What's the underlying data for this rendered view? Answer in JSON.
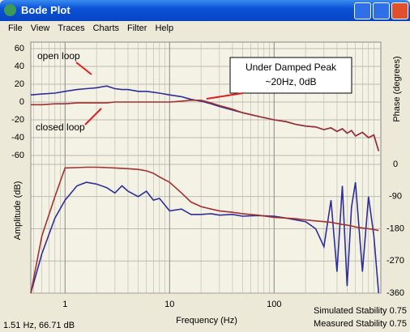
{
  "window": {
    "title": "Bode Plot",
    "menu": [
      "File",
      "View",
      "Traces",
      "Charts",
      "Filter",
      "Help"
    ]
  },
  "status": {
    "cursor": "1.51 Hz, 66.71 dB",
    "simulated": "Simulated Stability 0.75",
    "measured": "Measured Stability 0.75"
  },
  "chart_data": {
    "type": "line",
    "log_x": true,
    "x_label": "Frequency (Hz)",
    "y_label": "Amplitude (dB)",
    "y2_label": "Phase (degrees)",
    "annotations": [
      "open loop",
      "closed loop",
      "Under Damped Peak",
      "~20Hz, 0dB"
    ],
    "xlim": [
      0.47,
      1050
    ],
    "xticks": [
      1,
      10,
      100
    ],
    "xgrid_minor": [
      0.5,
      0.6,
      0.7,
      0.8,
      0.9,
      2,
      3,
      4,
      5,
      6,
      7,
      8,
      9,
      20,
      30,
      40,
      50,
      60,
      70,
      80,
      90,
      200,
      300,
      400,
      500,
      600,
      700,
      800,
      900
    ],
    "ylim": [
      -60,
      60
    ],
    "yticks": [
      60,
      40,
      20,
      0,
      -20,
      -40,
      -60
    ],
    "y2lim": [
      -360,
      0
    ],
    "y2ticks": [
      0,
      -90,
      -180,
      -270,
      -360
    ],
    "grid": true,
    "x": [
      0.47,
      0.6,
      0.8,
      1,
      1.3,
      1.6,
      2,
      2.5,
      3,
      3.5,
      4,
      5,
      6,
      7,
      8,
      10,
      13,
      16,
      20,
      25,
      30,
      40,
      50,
      70,
      100,
      130,
      160,
      200,
      250,
      300,
      350,
      400,
      450,
      500,
      550,
      600,
      700,
      800,
      900,
      1000
    ],
    "series": [
      {
        "color": "#2e2e9a",
        "values": [
          8,
          9,
          10,
          12,
          14,
          15,
          16,
          18,
          15,
          14,
          14,
          12,
          12,
          11,
          10,
          8,
          6,
          3,
          1,
          -2,
          -5,
          -9,
          -12,
          -16,
          -20,
          -22,
          -25,
          -27,
          -28,
          -31,
          -29,
          -33,
          -30,
          -35,
          -32,
          -38,
          -34,
          -40,
          -37,
          -55
        ]
      },
      {
        "color": "#a23030",
        "values": [
          -3,
          -3,
          -2,
          -2,
          -1,
          -1,
          -1,
          -1,
          0,
          0,
          0,
          0,
          0,
          0,
          0,
          0,
          1,
          2,
          2,
          -1,
          -4,
          -8,
          -12,
          -16,
          -20,
          -22,
          -25,
          -27,
          -28,
          -31,
          -29,
          -33,
          -30,
          -35,
          -32,
          -38,
          -34,
          -40,
          -37,
          -55
        ]
      },
      {
        "color": "#2e2e9a",
        "axis": "y2",
        "values": [
          -360,
          -250,
          -150,
          -100,
          -60,
          -50,
          -55,
          -65,
          -80,
          -60,
          -75,
          -90,
          -75,
          -100,
          -95,
          -130,
          -125,
          -140,
          -140,
          -138,
          -142,
          -140,
          -145,
          -143,
          -145,
          -150,
          -155,
          -160,
          -180,
          -230,
          -100,
          -300,
          -60,
          -340,
          -120,
          -50,
          -300,
          -90,
          -200,
          -360
        ]
      },
      {
        "color": "#a23030",
        "axis": "y2",
        "values": [
          -360,
          -200,
          -90,
          -10,
          -9,
          -8,
          -8,
          -9,
          -10,
          -11,
          -12,
          -14,
          -18,
          -25,
          -35,
          -50,
          -80,
          -105,
          -118,
          -125,
          -130,
          -134,
          -138,
          -142,
          -148,
          -150,
          -152,
          -155,
          -158,
          -160,
          -162,
          -165,
          -168,
          -170,
          -172,
          -175,
          -178,
          -180,
          -182,
          -185
        ]
      }
    ]
  }
}
